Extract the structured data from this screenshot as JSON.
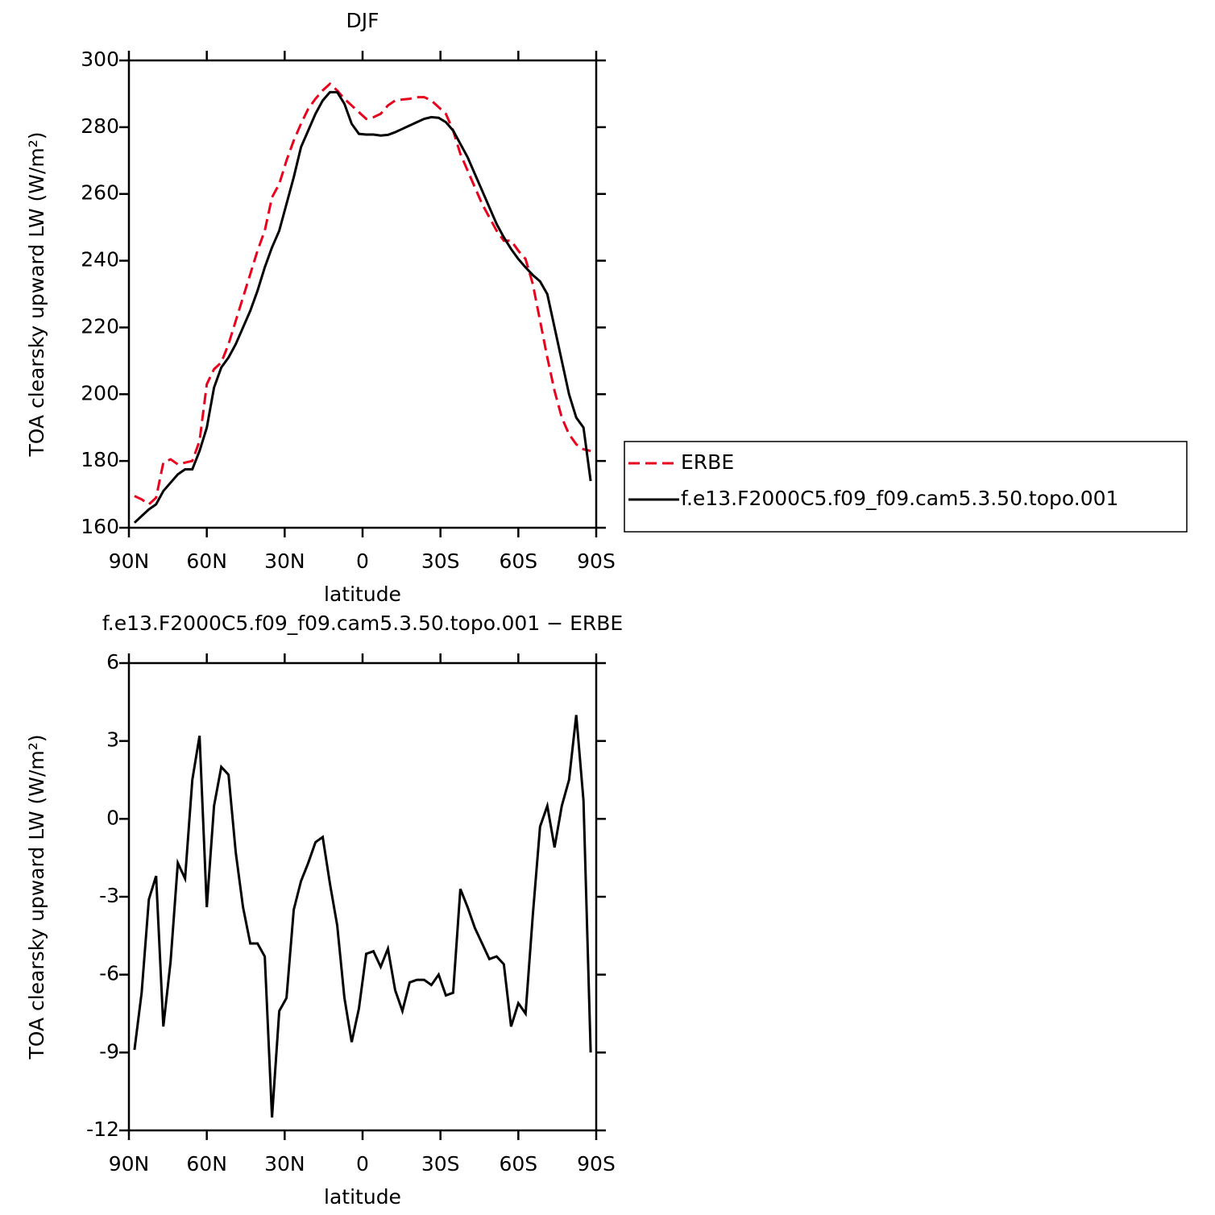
{
  "chart_data": [
    {
      "type": "line",
      "title": "DJF",
      "x_label": "latitude",
      "y_label": "TOA clearsky upward LW (W/m²)",
      "x": [
        87.86,
        85.1,
        82.31,
        79.53,
        76.74,
        73.95,
        71.16,
        68.37,
        65.58,
        62.79,
        60.0,
        57.21,
        54.42,
        51.63,
        48.84,
        46.05,
        43.25,
        40.46,
        37.67,
        34.88,
        32.09,
        29.3,
        26.51,
        23.72,
        20.93,
        18.14,
        15.35,
        12.56,
        9.77,
        6.98,
        4.19,
        1.4,
        -1.4,
        -4.19,
        -6.98,
        -9.77,
        -12.56,
        -15.35,
        -18.14,
        -20.93,
        -23.72,
        -26.51,
        -29.3,
        -32.09,
        -34.88,
        -37.67,
        -40.46,
        -43.25,
        -46.05,
        -48.84,
        -51.63,
        -54.42,
        -57.21,
        -60.0,
        -62.79,
        -65.58,
        -68.37,
        -71.16,
        -73.95,
        -76.74,
        -79.53,
        -82.31,
        -85.1,
        -87.86
      ],
      "xlim": [
        90,
        -90
      ],
      "xticks": [
        {
          "value": 90,
          "label": "90N"
        },
        {
          "value": 60,
          "label": "60N"
        },
        {
          "value": 30,
          "label": "30N"
        },
        0,
        {
          "value": -30,
          "label": "30S"
        },
        {
          "value": -60,
          "label": "60S"
        },
        {
          "value": -90,
          "label": "90S"
        }
      ],
      "ylim": [
        160,
        300
      ],
      "yticks": [
        160,
        180,
        200,
        220,
        240,
        260,
        280,
        300
      ],
      "legend": "right",
      "series": [
        {
          "name": "ERBE",
          "color": "#e8001c",
          "line_style": "dashed",
          "values": [
            169.5,
            168.5,
            167,
            169,
            179.5,
            180.5,
            179,
            179.5,
            180,
            186,
            203,
            207.5,
            209.5,
            215,
            222,
            229,
            236,
            243,
            249,
            259,
            263,
            270,
            276,
            281,
            285.5,
            288.5,
            291,
            293,
            291,
            288.5,
            286.5,
            284.5,
            282.5,
            283,
            284,
            286.5,
            288,
            288.3,
            288.5,
            289,
            289,
            288,
            286,
            284,
            279,
            272,
            267,
            262,
            257,
            253,
            249,
            246,
            246,
            243,
            240.5,
            233,
            222,
            211,
            201,
            193,
            188,
            185,
            183.5,
            183
          ]
        },
        {
          "name": "f.e13.F2000C5.f09_f09.cam5.3.50.topo.001",
          "color": "#000000",
          "line_style": "solid",
          "values": [
            161.5,
            163.5,
            165.5,
            167,
            171,
            173.5,
            176,
            177.5,
            177.5,
            183,
            190,
            202,
            208,
            211,
            215,
            220,
            225,
            231,
            238,
            244,
            249,
            257,
            265,
            274,
            279,
            284,
            288,
            290.5,
            290.5,
            287,
            281,
            278,
            277.8,
            277.8,
            277.5,
            277.7,
            278.5,
            279.5,
            280.5,
            281.5,
            282.5,
            283,
            282.8,
            281.5,
            279,
            275,
            271,
            266,
            261,
            256,
            251,
            247,
            243.5,
            240.5,
            238,
            235.7,
            233.8,
            230,
            220,
            210,
            200,
            193,
            190,
            174
          ]
        }
      ]
    },
    {
      "type": "line",
      "title": "f.e13.F2000C5.f09_f09.cam5.3.50.topo.001 − ERBE",
      "x_label": "latitude",
      "y_label": "TOA clearsky upward LW (W/m²)",
      "x": [
        87.86,
        85.1,
        82.31,
        79.53,
        76.74,
        73.95,
        71.16,
        68.37,
        65.58,
        62.79,
        60.0,
        57.21,
        54.42,
        51.63,
        48.84,
        46.05,
        43.25,
        40.46,
        37.67,
        34.88,
        32.09,
        29.3,
        26.51,
        23.72,
        20.93,
        18.14,
        15.35,
        12.56,
        9.77,
        6.98,
        4.19,
        1.4,
        -1.4,
        -4.19,
        -6.98,
        -9.77,
        -12.56,
        -15.35,
        -18.14,
        -20.93,
        -23.72,
        -26.51,
        -29.3,
        -32.09,
        -34.88,
        -37.67,
        -40.46,
        -43.25,
        -46.05,
        -48.84,
        -51.63,
        -54.42,
        -57.21,
        -60.0,
        -62.79,
        -65.58,
        -68.37,
        -71.16,
        -73.95,
        -76.74,
        -79.53,
        -82.31,
        -85.1,
        -87.86
      ],
      "xlim": [
        90,
        -90
      ],
      "xticks": [
        {
          "value": 90,
          "label": "90N"
        },
        {
          "value": 60,
          "label": "60N"
        },
        {
          "value": 30,
          "label": "30N"
        },
        0,
        {
          "value": -30,
          "label": "30S"
        },
        {
          "value": -60,
          "label": "60S"
        },
        {
          "value": -90,
          "label": "90S"
        }
      ],
      "ylim": [
        -12,
        6
      ],
      "yticks": [
        -12,
        -9,
        -6,
        -3,
        0,
        3,
        6
      ],
      "color": "#000000",
      "values": [
        -8.9,
        -6.7,
        -3.1,
        -2.2,
        -8.0,
        -5.5,
        -1.7,
        -2.3,
        1.5,
        3.2,
        -3.4,
        0.5,
        2.0,
        1.7,
        -1.3,
        -3.4,
        -4.8,
        -4.8,
        -5.3,
        -11.5,
        -7.4,
        -6.9,
        -3.5,
        -2.4,
        -1.7,
        -0.9,
        -0.7,
        -2.5,
        -4.1,
        -6.9,
        -8.6,
        -7.3,
        -5.2,
        -5.1,
        -5.7,
        -5.0,
        -6.6,
        -7.4,
        -6.3,
        -6.2,
        -6.2,
        -6.4,
        -6.0,
        -6.8,
        -6.7,
        -2.7,
        -3.4,
        -4.2,
        -4.8,
        -5.4,
        -5.3,
        -5.6,
        -8.0,
        -7.1,
        -7.5,
        -3.7,
        -0.3,
        0.5,
        -1.1,
        0.5,
        1.5,
        4.0,
        0.7,
        -9.0
      ]
    }
  ]
}
